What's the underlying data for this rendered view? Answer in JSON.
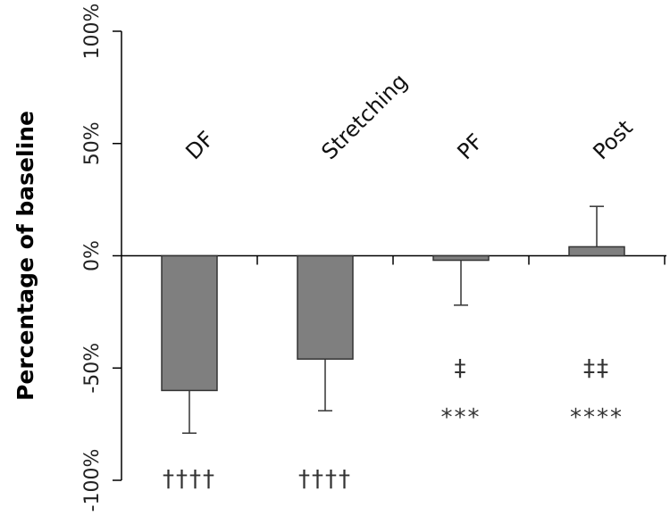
{
  "chart_data": {
    "type": "bar",
    "categories": [
      "DF",
      "Stretching",
      "PF",
      "Post"
    ],
    "values": [
      -60,
      -46,
      -2,
      4
    ],
    "error_bars": [
      -79,
      -69,
      -22,
      22
    ],
    "ylabel": "Percentage of baseline",
    "ylim": [
      -100,
      100
    ],
    "yticks": [
      "100%",
      "50%",
      "0%",
      "-50%",
      "-100%"
    ],
    "ytick_values": [
      100,
      50,
      0,
      -50,
      -100
    ],
    "annotations": [
      {
        "category": "DF",
        "lines": [
          "††††"
        ]
      },
      {
        "category": "Stretching",
        "lines": [
          "††††"
        ]
      },
      {
        "category": "PF",
        "lines": [
          "‡",
          "***"
        ]
      },
      {
        "category": "Post",
        "lines": [
          "‡‡",
          "****"
        ]
      }
    ],
    "bar_color": "#7f7f7f",
    "grid": false
  }
}
